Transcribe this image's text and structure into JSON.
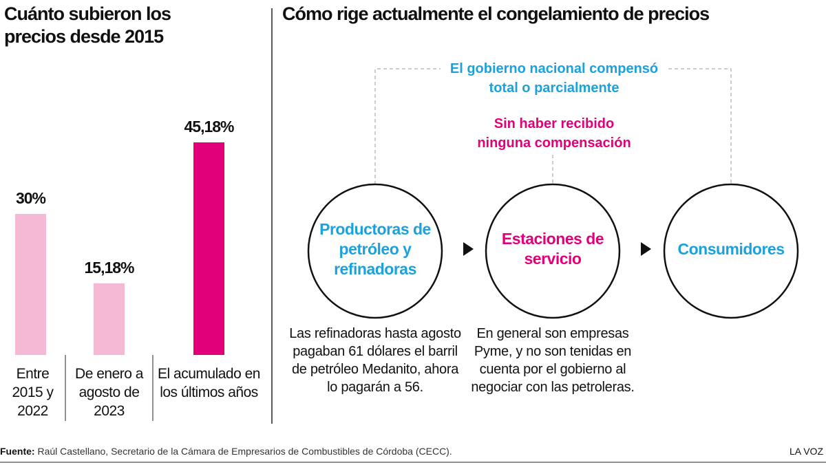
{
  "chart_data": {
    "type": "bar",
    "title": "Cuánto subieron los precios desde 2015",
    "categories": [
      "Entre 2015 y 2022",
      "De enero a agosto de 2023",
      "El acumulado en los últimos años"
    ],
    "values": [
      30,
      15.18,
      45.18
    ],
    "value_labels": [
      "30%",
      "15,18%",
      "45,18%"
    ],
    "colors": [
      "#f5b8d5",
      "#f5b8d5",
      "#e2007a"
    ]
  },
  "diagram": {
    "title": "Cómo rige actualmente el congelamiento de precios",
    "compensated_label": "El gobierno nacional compensó total o parcialmente",
    "uncompensated_label": "Sin haber recibido ninguna compensación",
    "nodes": [
      {
        "label": "Productoras de petróleo y refinadoras",
        "color": "#1ba1dd",
        "note": "Las refinadoras hasta agosto pagaban 61 dólares el barril de petróleo Medanito, ahora lo pagarán a 56."
      },
      {
        "label": "Estaciones de servicio",
        "color": "#e2007a",
        "note": "En general son empresas Pyme, y no son tenidas en cuenta por el gobierno al negociar con las petroleras."
      },
      {
        "label": "Consumidores",
        "color": "#1ba1dd"
      }
    ]
  },
  "footer": {
    "source_label": "Fuente:",
    "source_text": "Raúl Castellano, Secretario de la Cámara de Empresarios de Combustibles de Córdoba (CECC).",
    "brand": "LA VOZ"
  }
}
